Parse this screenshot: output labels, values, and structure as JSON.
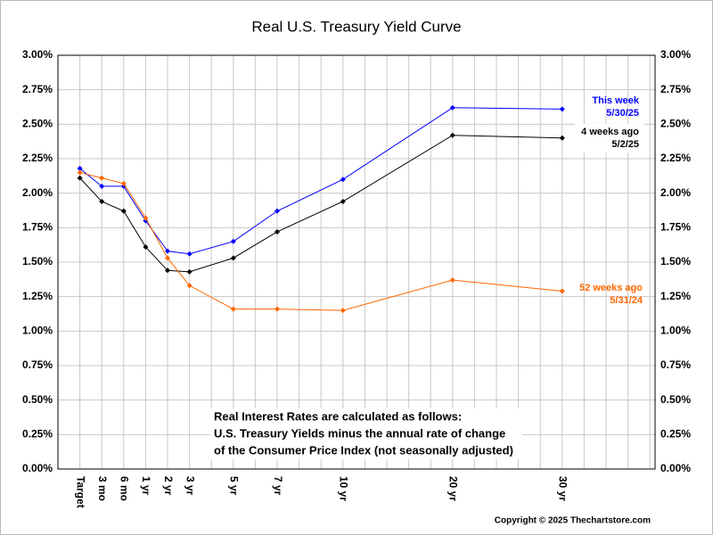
{
  "chart_data": {
    "type": "line",
    "title": "Real U.S. Treasury Yield Curve",
    "categories": [
      "Target",
      "3 mo",
      "6 mo",
      "1 yr",
      "2 yr",
      "3 yr",
      "5 yr",
      "7 yr",
      "10 yr",
      "20 yr",
      "30 yr"
    ],
    "series": [
      {
        "name": "This week",
        "date": "5/30/25",
        "color": "#0000ff",
        "values": [
          2.18,
          2.05,
          2.05,
          1.8,
          1.58,
          1.56,
          1.65,
          1.87,
          2.1,
          2.62,
          2.61
        ]
      },
      {
        "name": "4 weeks ago",
        "date": "5/2/25",
        "color": "#000000",
        "values": [
          2.11,
          1.94,
          1.87,
          1.61,
          1.44,
          1.43,
          1.53,
          1.72,
          1.94,
          2.42,
          2.4
        ]
      },
      {
        "name": "52 weeks ago",
        "date": "5/31/24",
        "color": "#ff6600",
        "values": [
          2.15,
          2.11,
          2.07,
          1.82,
          1.53,
          1.33,
          1.16,
          1.16,
          1.15,
          1.37,
          1.29
        ]
      }
    ],
    "ylim": [
      0,
      3
    ],
    "yticks": [
      {
        "value": 0,
        "label": "0.00%"
      },
      {
        "value": 0.25,
        "label": "0.25%"
      },
      {
        "value": 0.5,
        "label": "0.50%"
      },
      {
        "value": 0.75,
        "label": "0.75%"
      },
      {
        "value": 1,
        "label": "1.00%"
      },
      {
        "value": 1.25,
        "label": "1.25%"
      },
      {
        "value": 1.5,
        "label": "1.50%"
      },
      {
        "value": 1.75,
        "label": "1.75%"
      },
      {
        "value": 2,
        "label": "2.00%"
      },
      {
        "value": 2.25,
        "label": "2.25%"
      },
      {
        "value": 2.5,
        "label": "2.50%"
      },
      {
        "value": 2.75,
        "label": "2.75%"
      },
      {
        "value": 3,
        "label": "3.00%"
      }
    ],
    "grid": true,
    "annotation": [
      "Real Interest Rates are calculated as follows:",
      "U.S. Treasury Yields minus the annual rate of change",
      "of the Consumer Price Index (not seasonally adjusted)"
    ],
    "copyright": "Copyright © 2025 Thechartstore.com"
  }
}
